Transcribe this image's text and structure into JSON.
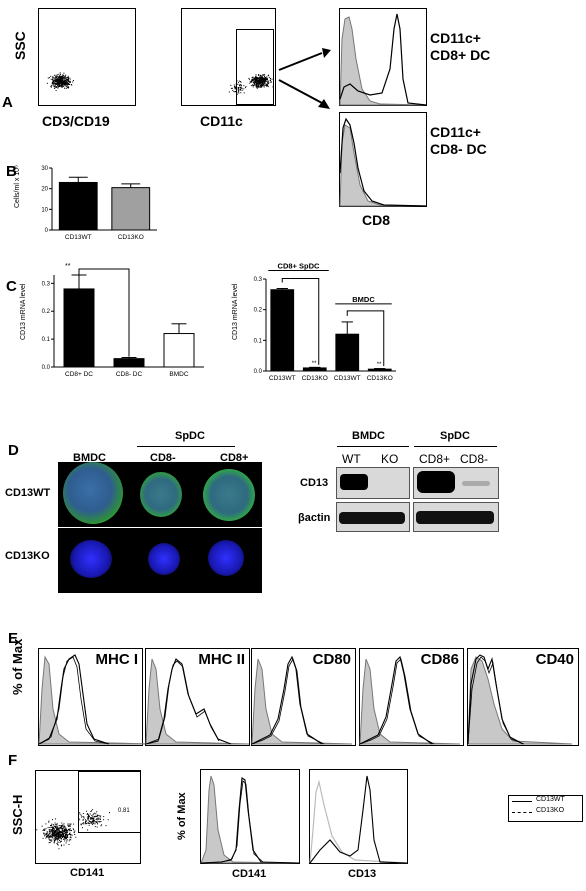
{
  "panels": {
    "A": {
      "letter": "A",
      "ssc_label": "SSC",
      "x_label_1": "CD3/CD19",
      "x_label_2": "CD11c",
      "hist_x_label": "CD8",
      "pop_top": "CD11c+\nCD8+ DC",
      "pop_bottom": "CD11c+\nCD8- DC"
    },
    "B": {
      "letter": "B",
      "ylabel": "Cells/ml x 10⁶",
      "yticks": [
        "0",
        "10",
        "20",
        "30"
      ]
    },
    "C": {
      "letter": "C",
      "ylabel_left": "CD13 mRNA level",
      "ylabel_right": "CD13 mRNA level",
      "yticks": [
        "0.0",
        "0.1",
        "0.2",
        "0.3"
      ],
      "sig_left": "**",
      "sig_right_1": "**",
      "sig_right_2": "**",
      "bracket_1": "CD8+ SpDC",
      "bracket_2": "BMDC"
    },
    "D": {
      "letter": "D",
      "col_bmdc": "BMDC",
      "col_spdc": "SpDC",
      "col_cd8m": "CD8-",
      "col_cd8p": "CD8+",
      "row_wt": "CD13WT",
      "row_ko": "CD13KO",
      "blot_bmdc": "BMDC",
      "blot_spdc": "SpDC",
      "blot_wt": "WT",
      "blot_ko": "KO",
      "blot_cd8p": "CD8+",
      "blot_cd8m": "CD8-",
      "blot_cd13": "CD13",
      "blot_actin": "βactin"
    },
    "E": {
      "letter": "E",
      "ylabel": "% of Max",
      "markers": [
        "MHC I",
        "MHC II",
        "CD80",
        "CD86",
        "CD40"
      ]
    },
    "F": {
      "letter": "F",
      "ylabel_dot": "SSC-H",
      "xlabel_dot": "CD141",
      "gate_value": "0.81",
      "ylabel_hist": "% of Max",
      "hist_labels": [
        "CD141",
        "CD13"
      ],
      "legend": [
        "CD13WT",
        "CD13KO"
      ]
    }
  },
  "chart_data": [
    {
      "type": "bar",
      "panel": "B",
      "categories": [
        "CD13WT",
        "CD13KO"
      ],
      "values": [
        23,
        20.5
      ],
      "errors": [
        2.5,
        1.8
      ],
      "ylabel": "Cells/ml x 10⁶",
      "ylim": [
        0,
        30
      ],
      "colors": [
        "#000000",
        "#a0a0a0"
      ]
    },
    {
      "type": "bar",
      "panel": "C-left",
      "categories": [
        "CD8+ DC",
        "CD8- DC",
        "BMDC"
      ],
      "values": [
        0.28,
        0.03,
        0.12
      ],
      "errors": [
        0.05,
        0.004,
        0.035
      ],
      "ylabel": "CD13 mRNA level",
      "ylim": [
        0,
        0.33
      ],
      "colors": [
        "#000000",
        "#000000",
        "#ffffff"
      ]
    },
    {
      "type": "bar",
      "panel": "C-right",
      "categories": [
        "CD13WT",
        "CD13KO",
        "CD13WT",
        "CD13KO"
      ],
      "values": [
        0.265,
        0.01,
        0.12,
        0.006
      ],
      "errors": [
        0.004,
        0.002,
        0.04,
        0.002
      ],
      "ylabel": "CD13 mRNA level",
      "ylim": [
        0,
        0.3
      ],
      "colors": [
        "#000000",
        "#000000",
        "#000000",
        "#000000"
      ]
    }
  ]
}
